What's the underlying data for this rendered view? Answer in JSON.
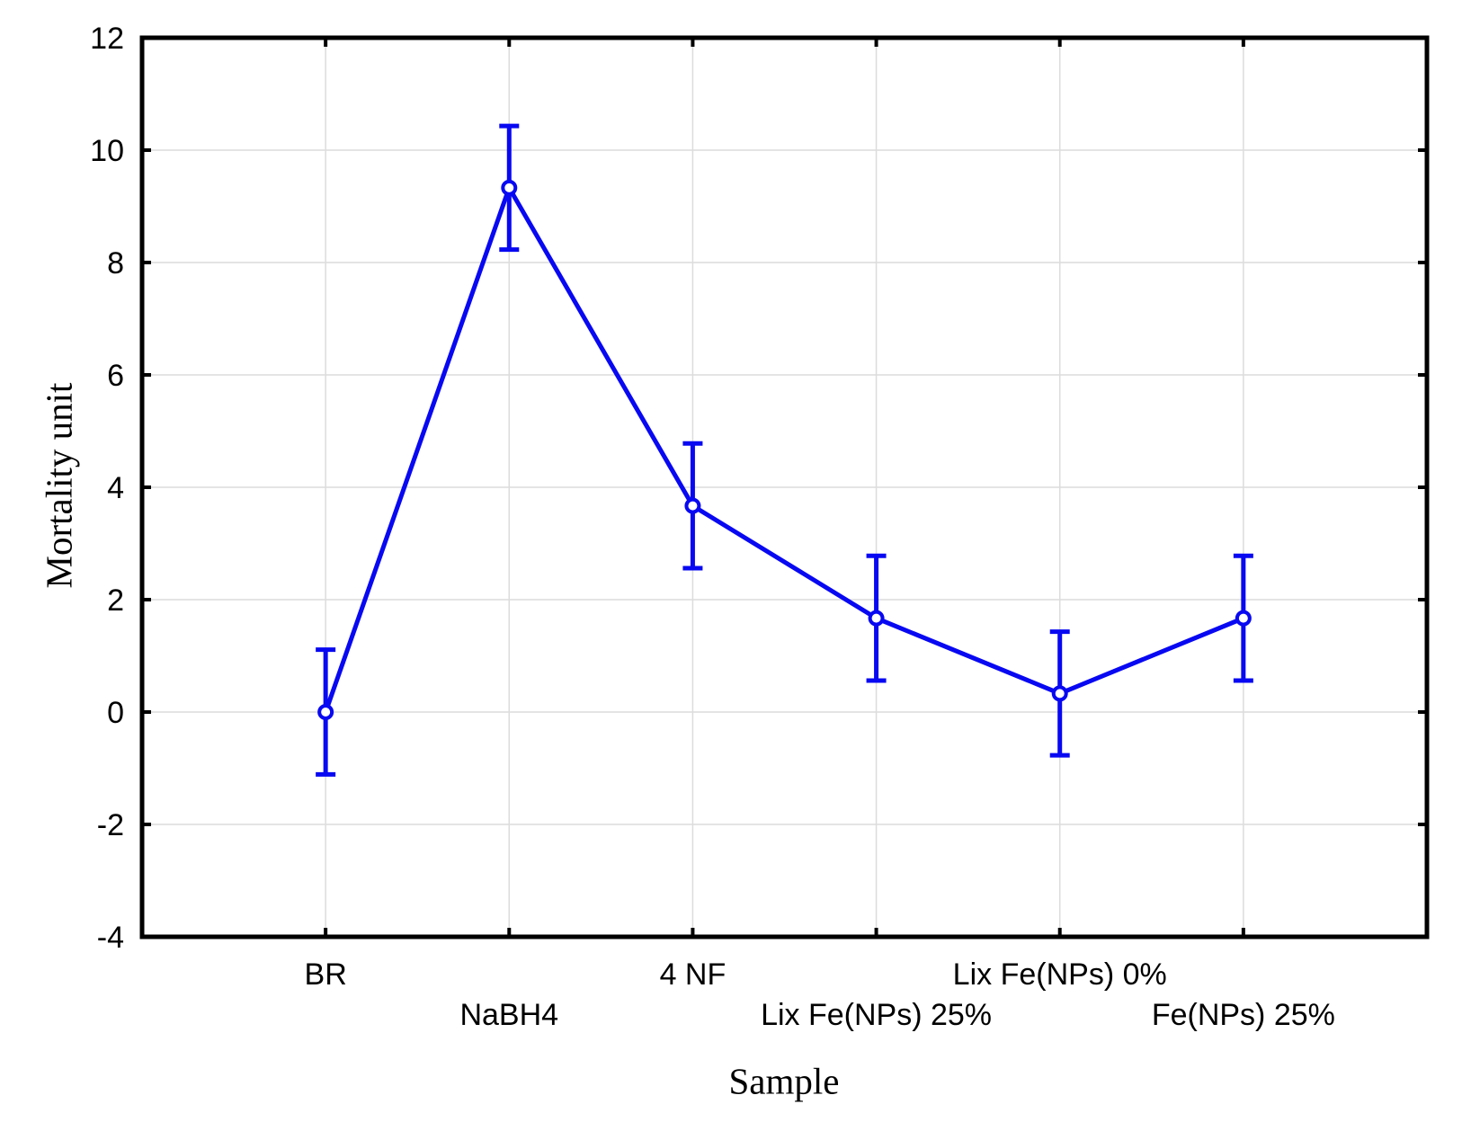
{
  "figure": {
    "background": "#ffffff"
  },
  "chart_data": {
    "type": "line",
    "title": "",
    "xlabel": "Sample",
    "ylabel": "Mortality unit",
    "categories": [
      "BR",
      "NaBH4",
      "4 NF",
      "Lix Fe(NPs) 25%",
      "Lix Fe(NPs) 0%",
      "Fe(NPs) 25%"
    ],
    "x_label_rows": [
      0,
      1,
      0,
      1,
      0,
      1
    ],
    "series": [
      {
        "name": "mortality-unit",
        "values": [
          0.0,
          9.33,
          3.67,
          1.67,
          0.33,
          1.67
        ],
        "errors": [
          1.11,
          1.1,
          1.11,
          1.11,
          1.1,
          1.11
        ],
        "color": "#0808f2",
        "marker": "open-circle"
      }
    ],
    "ylim": [
      -4,
      12
    ],
    "ytick_step": 2,
    "grid": true,
    "legend_position": "none",
    "frame_color": "#000000",
    "grid_color": "#dcdcdc",
    "tick_label_color": "#000000"
  }
}
